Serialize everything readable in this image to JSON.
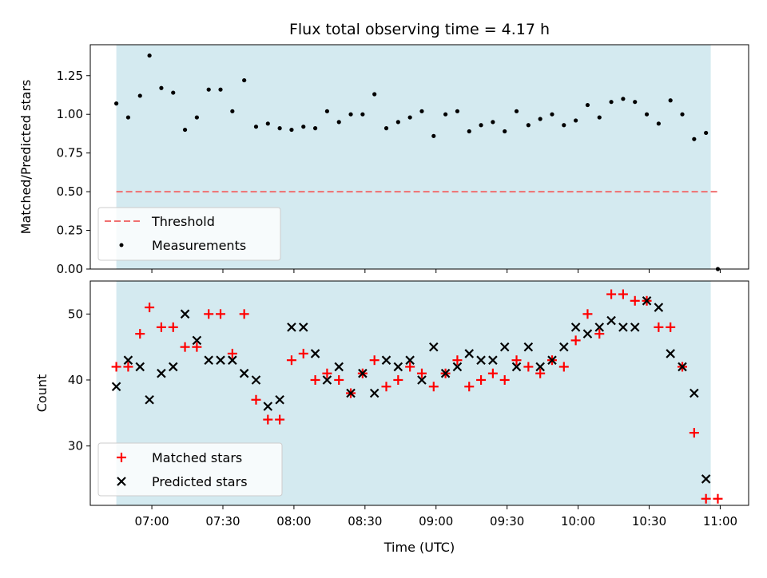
{
  "title": "Flux total observing time = 4.17 h",
  "colors": {
    "shade": "#d4eaf0",
    "threshold": "#f07070",
    "measurement": "#000000",
    "matched": "#ff0000",
    "predicted": "#000000"
  },
  "chart_data": [
    {
      "type": "scatter",
      "ylabel": "Matched/Predicted stars",
      "xlabel": "",
      "xlim": [
        "06:34",
        "11:12"
      ],
      "ylim": [
        0,
        1.45
      ],
      "yticks": [
        "0.00",
        "0.25",
        "0.50",
        "0.75",
        "1.00",
        "1.25"
      ],
      "shaded_region": [
        "06:45",
        "10:56"
      ],
      "legend": [
        "Threshold",
        "Measurements"
      ],
      "legend_position": "lower-left",
      "threshold": {
        "name": "Threshold",
        "y": 0.5,
        "x": [
          "06:45",
          "11:00"
        ]
      },
      "series": [
        {
          "name": "Measurements",
          "x": [
            "06:45",
            "06:50",
            "06:55",
            "06:59",
            "07:04",
            "07:09",
            "07:14",
            "07:19",
            "07:24",
            "07:29",
            "07:34",
            "07:39",
            "07:44",
            "07:49",
            "07:54",
            "07:59",
            "08:04",
            "08:09",
            "08:14",
            "08:19",
            "08:24",
            "08:29",
            "08:34",
            "08:39",
            "08:44",
            "08:49",
            "08:54",
            "08:59",
            "09:04",
            "09:09",
            "09:14",
            "09:19",
            "09:24",
            "09:29",
            "09:34",
            "09:39",
            "09:44",
            "09:49",
            "09:54",
            "09:59",
            "10:04",
            "10:09",
            "10:14",
            "10:19",
            "10:24",
            "10:29",
            "10:34",
            "10:39",
            "10:44",
            "10:49",
            "10:54",
            "10:59"
          ],
          "y": [
            1.07,
            0.98,
            1.12,
            1.38,
            1.17,
            1.14,
            0.9,
            0.98,
            1.16,
            1.16,
            1.02,
            1.22,
            0.92,
            0.94,
            0.91,
            0.9,
            0.92,
            0.91,
            1.02,
            0.95,
            1.0,
            1.0,
            1.13,
            0.91,
            0.95,
            0.98,
            1.02,
            0.86,
            1.0,
            1.02,
            0.89,
            0.93,
            0.95,
            0.89,
            1.02,
            0.93,
            0.97,
            1.0,
            0.93,
            0.96,
            1.06,
            0.98,
            1.08,
            1.1,
            1.08,
            1.0,
            0.94,
            1.09,
            1.0,
            0.84,
            0.88,
            0.0
          ]
        }
      ]
    },
    {
      "type": "scatter",
      "ylabel": "Count",
      "xlabel": "Time (UTC)",
      "xlim": [
        "06:34",
        "11:12"
      ],
      "ylim": [
        21,
        55
      ],
      "yticks": [
        "30",
        "40",
        "50"
      ],
      "xticks": [
        "07:00",
        "07:30",
        "08:00",
        "08:30",
        "09:00",
        "09:30",
        "10:00",
        "10:30",
        "11:00"
      ],
      "shaded_region": [
        "06:45",
        "10:56"
      ],
      "legend": [
        "Matched stars",
        "Predicted stars"
      ],
      "legend_position": "lower-left",
      "series": [
        {
          "name": "Matched stars",
          "x": [
            "06:45",
            "06:50",
            "06:55",
            "06:59",
            "07:04",
            "07:09",
            "07:14",
            "07:19",
            "07:24",
            "07:29",
            "07:34",
            "07:39",
            "07:44",
            "07:49",
            "07:54",
            "07:59",
            "08:04",
            "08:09",
            "08:14",
            "08:19",
            "08:24",
            "08:29",
            "08:34",
            "08:39",
            "08:44",
            "08:49",
            "08:54",
            "08:59",
            "09:04",
            "09:09",
            "09:14",
            "09:19",
            "09:24",
            "09:29",
            "09:34",
            "09:39",
            "09:44",
            "09:49",
            "09:54",
            "09:59",
            "10:04",
            "10:09",
            "10:14",
            "10:19",
            "10:24",
            "10:29",
            "10:34",
            "10:39",
            "10:44",
            "10:49",
            "10:54",
            "10:59"
          ],
          "y": [
            42,
            42,
            47,
            51,
            48,
            48,
            45,
            45,
            50,
            50,
            44,
            50,
            37,
            34,
            34,
            43,
            44,
            40,
            41,
            40,
            38,
            41,
            43,
            39,
            40,
            42,
            41,
            39,
            41,
            43,
            39,
            40,
            41,
            40,
            43,
            42,
            41,
            43,
            42,
            46,
            50,
            47,
            53,
            53,
            52,
            52,
            48,
            48,
            42,
            32,
            22,
            22
          ]
        },
        {
          "name": "Predicted stars",
          "x": [
            "06:45",
            "06:50",
            "06:55",
            "06:59",
            "07:04",
            "07:09",
            "07:14",
            "07:19",
            "07:24",
            "07:29",
            "07:34",
            "07:39",
            "07:44",
            "07:49",
            "07:54",
            "07:59",
            "08:04",
            "08:09",
            "08:14",
            "08:19",
            "08:24",
            "08:29",
            "08:34",
            "08:39",
            "08:44",
            "08:49",
            "08:54",
            "08:59",
            "09:04",
            "09:09",
            "09:14",
            "09:19",
            "09:24",
            "09:29",
            "09:34",
            "09:39",
            "09:44",
            "09:49",
            "09:54",
            "09:59",
            "10:04",
            "10:09",
            "10:14",
            "10:19",
            "10:24",
            "10:29",
            "10:34",
            "10:39",
            "10:44",
            "10:49",
            "10:54"
          ],
          "y": [
            39,
            43,
            42,
            37,
            41,
            42,
            50,
            46,
            43,
            43,
            43,
            41,
            40,
            36,
            37,
            48,
            48,
            44,
            40,
            42,
            38,
            41,
            38,
            43,
            42,
            43,
            40,
            45,
            41,
            42,
            44,
            43,
            43,
            45,
            42,
            45,
            42,
            43,
            45,
            48,
            47,
            48,
            49,
            48,
            48,
            52,
            51,
            44,
            42,
            38,
            25
          ]
        }
      ]
    }
  ]
}
